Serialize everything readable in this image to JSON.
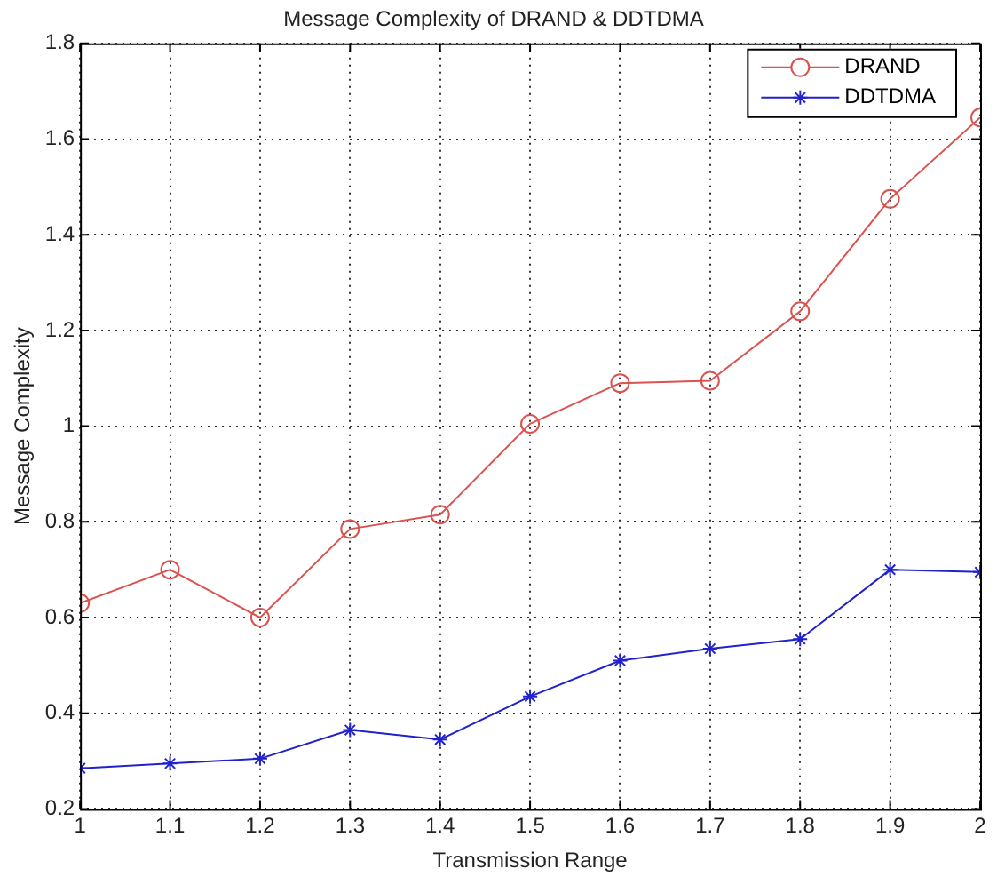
{
  "chart_data": {
    "type": "line",
    "title": "Message Complexity of DRAND & DDTDMA",
    "xlabel": "Transmission Range",
    "ylabel": "Message Complexity",
    "x": [
      1,
      1.1,
      1.2,
      1.3,
      1.4,
      1.5,
      1.6,
      1.7,
      1.8,
      1.9,
      2
    ],
    "series": [
      {
        "name": "DRAND",
        "color": "#d9534f",
        "marker": "circle",
        "values": [
          0.63,
          0.7,
          0.6,
          0.785,
          0.815,
          1.005,
          1.09,
          1.095,
          1.24,
          1.475,
          1.645
        ]
      },
      {
        "name": "DDTDMA",
        "color": "#2222cc",
        "marker": "cross",
        "values": [
          0.285,
          0.295,
          0.305,
          0.365,
          0.345,
          0.435,
          0.51,
          0.535,
          0.555,
          0.7,
          0.695
        ]
      }
    ],
    "xlim": [
      1,
      2
    ],
    "xticks": [
      1,
      1.1,
      1.2,
      1.3,
      1.4,
      1.5,
      1.6,
      1.7,
      1.8,
      1.9,
      2
    ],
    "ylim": [
      0.2,
      1.8
    ],
    "yticks": [
      0.2,
      0.4,
      0.6,
      0.8,
      1,
      1.2,
      1.4,
      1.6,
      1.8
    ],
    "grid": true,
    "legend": "top right",
    "line_style": "solid"
  }
}
